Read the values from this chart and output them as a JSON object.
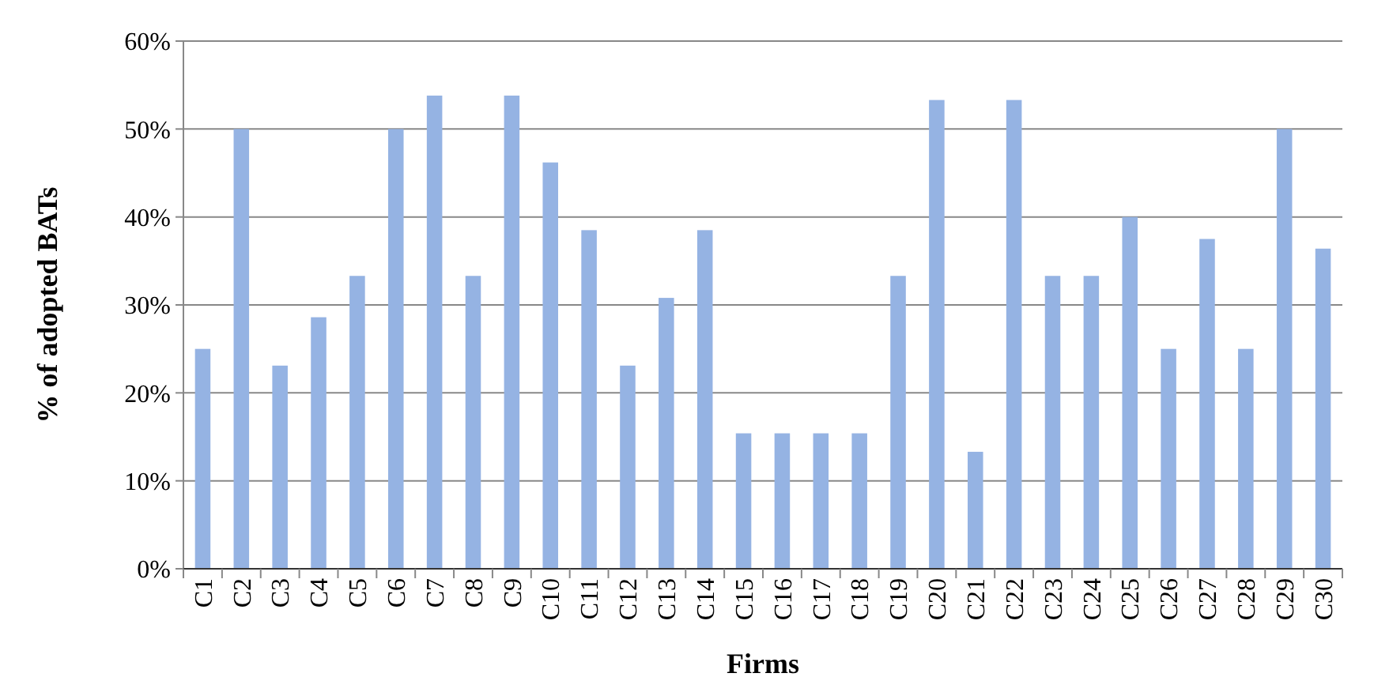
{
  "chart_data": {
    "type": "bar",
    "xlabel": "Firms",
    "ylabel": "% of adopted BATs",
    "categories": [
      "C1",
      "C2",
      "C3",
      "C4",
      "C5",
      "C6",
      "C7",
      "C8",
      "C9",
      "C10",
      "C11",
      "C12",
      "C13",
      "C14",
      "C15",
      "C16",
      "C17",
      "C18",
      "C19",
      "C20",
      "C21",
      "C22",
      "C23",
      "C24",
      "C25",
      "C26",
      "C27",
      "C28",
      "C29",
      "C30"
    ],
    "values": [
      25,
      50,
      23.1,
      28.6,
      33.3,
      50,
      53.8,
      33.3,
      53.8,
      46.2,
      38.5,
      23.1,
      30.8,
      38.5,
      15.4,
      15.4,
      15.4,
      15.4,
      33.3,
      53.3,
      13.3,
      53.3,
      33.3,
      33.3,
      40,
      25,
      37.5,
      25,
      50,
      36.4
    ],
    "color": "#95b3e3",
    "ylim": [
      0,
      60
    ],
    "yticks": [
      {
        "value": 0,
        "label": "0%"
      },
      {
        "value": 10,
        "label": "10%"
      },
      {
        "value": 20,
        "label": "20%"
      },
      {
        "value": 30,
        "label": "30%"
      },
      {
        "value": 40,
        "label": "40%"
      },
      {
        "value": 50,
        "label": "50%"
      },
      {
        "value": 60,
        "label": "60%"
      }
    ],
    "grid": "y"
  }
}
